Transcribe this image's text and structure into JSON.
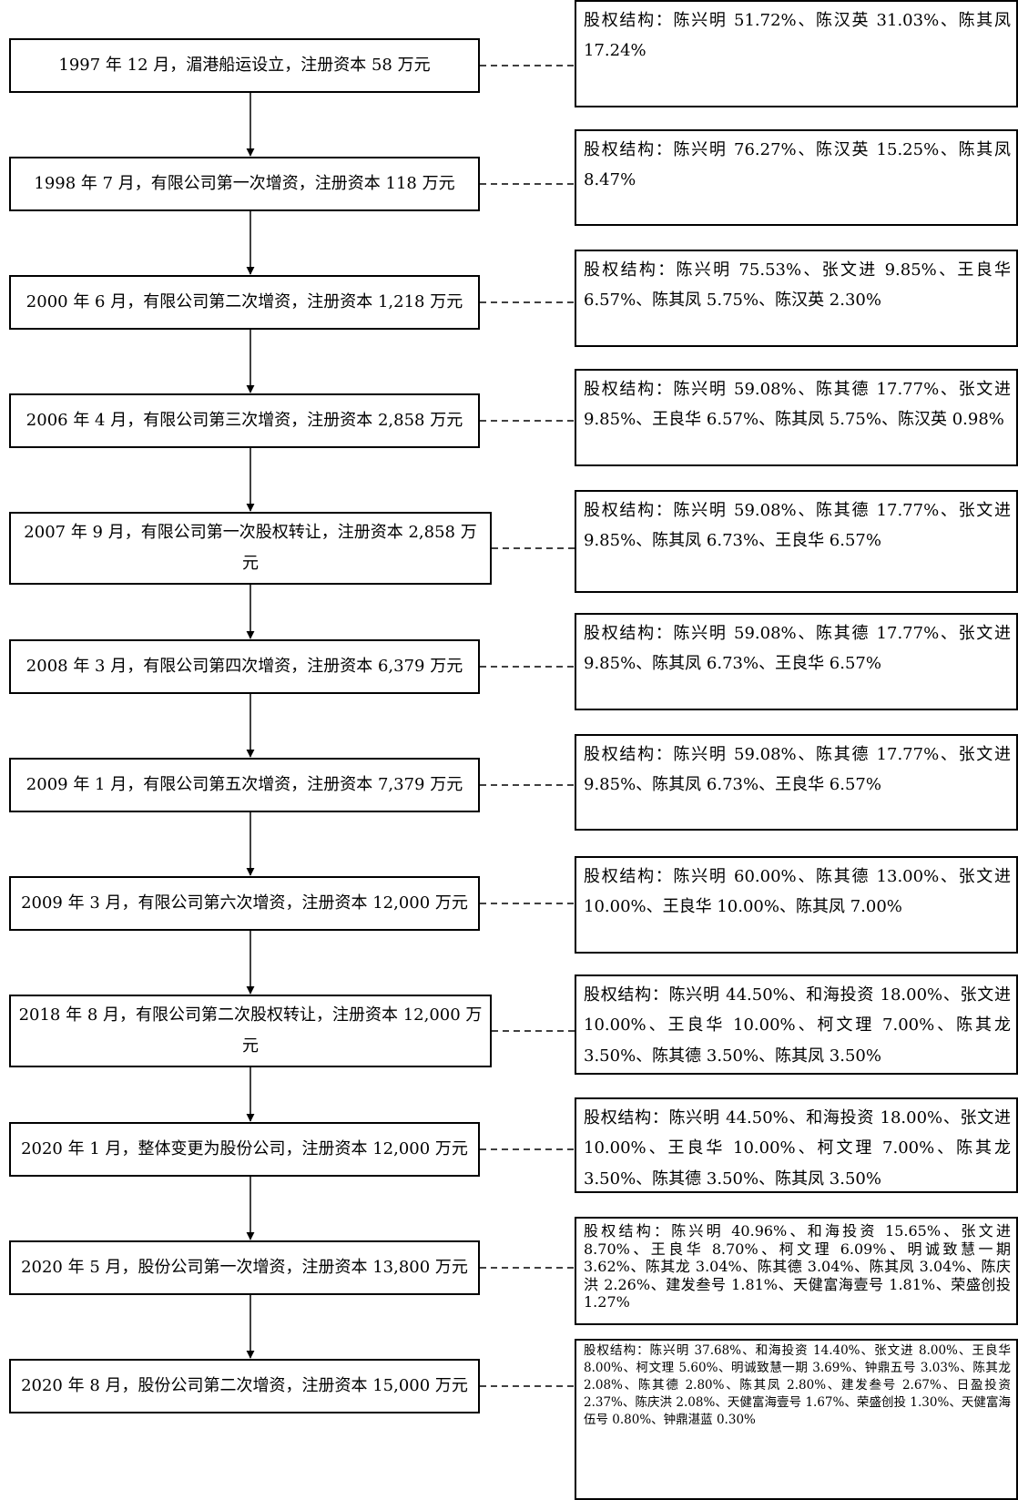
{
  "events": [
    {
      "text": "1997 年 12 月，湄港船运设立，注册资本 58 万元",
      "structure": "股权结构：陈兴明 51.72%、陈汉英 31.03%、陈其凤 17.24%"
    },
    {
      "text": "1998 年 7 月，有限公司第一次增资，注册资本 118 万元",
      "structure": "股权结构：陈兴明 76.27%、陈汉英 15.25%、陈其凤 8.47%"
    },
    {
      "text": "2000 年 6 月，有限公司第二次增资，注册资本 1,218 万元",
      "structure": "股权结构：陈兴明 75.53%、张文进 9.85%、王良华 6.57%、陈其凤 5.75%、陈汉英 2.30%"
    },
    {
      "text": "2006 年 4 月，有限公司第三次增资，注册资本 2,858 万元",
      "structure": "股权结构：陈兴明 59.08%、陈其德 17.77%、张文进 9.85%、王良华 6.57%、陈其凤 5.75%、陈汉英 0.98%"
    },
    {
      "text": "2007 年 9 月，有限公司第一次股权转让，注册资本 2,858 万元",
      "structure": "股权结构：陈兴明 59.08%、陈其德 17.77%、张文进 9.85%、陈其凤 6.73%、王良华 6.57%"
    },
    {
      "text": "2008 年 3 月，有限公司第四次增资，注册资本 6,379 万元",
      "structure": "股权结构：陈兴明 59.08%、陈其德 17.77%、张文进 9.85%、陈其凤 6.73%、王良华 6.57%"
    },
    {
      "text": "2009 年 1 月，有限公司第五次增资，注册资本 7,379 万元",
      "structure": "股权结构：陈兴明 59.08%、陈其德 17.77%、张文进 9.85%、陈其凤 6.73%、王良华 6.57%"
    },
    {
      "text": "2009 年 3 月，有限公司第六次增资，注册资本 12,000 万元",
      "structure": "股权结构：陈兴明 60.00%、陈其德 13.00%、张文进 10.00%、王良华 10.00%、陈其凤 7.00%"
    },
    {
      "text": "2018 年 8 月，有限公司第二次股权转让，注册资本 12,000 万元",
      "structure": "股权结构：陈兴明 44.50%、和海投资 18.00%、张文进 10.00%、王良华 10.00%、柯文理 7.00%、陈其龙 3.50%、陈其德 3.50%、陈其凤 3.50%"
    },
    {
      "text": "2020 年 1 月，整体变更为股份公司，注册资本 12,000 万元",
      "structure": "股权结构：陈兴明 44.50%、和海投资 18.00%、张文进 10.00%、王良华 10.00%、柯文理 7.00%、陈其龙 3.50%、陈其德 3.50%、陈其凤 3.50%"
    },
    {
      "text": "2020 年 5 月，股份公司第一次增资，注册资本 13,800 万元",
      "structure": "股权结构：陈兴明 40.96%、和海投资 15.65%、张文进 8.70%、王良华 8.70%、柯文理 6.09%、明诚致慧一期 3.62%、陈其龙 3.04%、陈其德 3.04%、陈其凤 3.04%、陈庆洪 2.26%、建发叁号 1.81%、天健富海壹号 1.81%、荣盛创投 1.27%"
    },
    {
      "text": "2020 年 8 月，股份公司第二次增资，注册资本 15,000 万元",
      "structure": "股权结构：陈兴明 37.68%、和海投资 14.40%、张文进 8.00%、王良华 8.00%、柯文理 5.60%、明诚致慧一期 3.69%、钟鼎五号 3.03%、陈其龙 2.08%、陈其德 2.80%、陈其凤 2.80%、建发叁号 2.67%、日盈投资 2.37%、陈庆洪 2.08%、天健富海壹号 1.67%、荣盛创投 1.30%、天健富海伍号 0.80%、钟鼎湛蓝 0.30%"
    }
  ]
}
